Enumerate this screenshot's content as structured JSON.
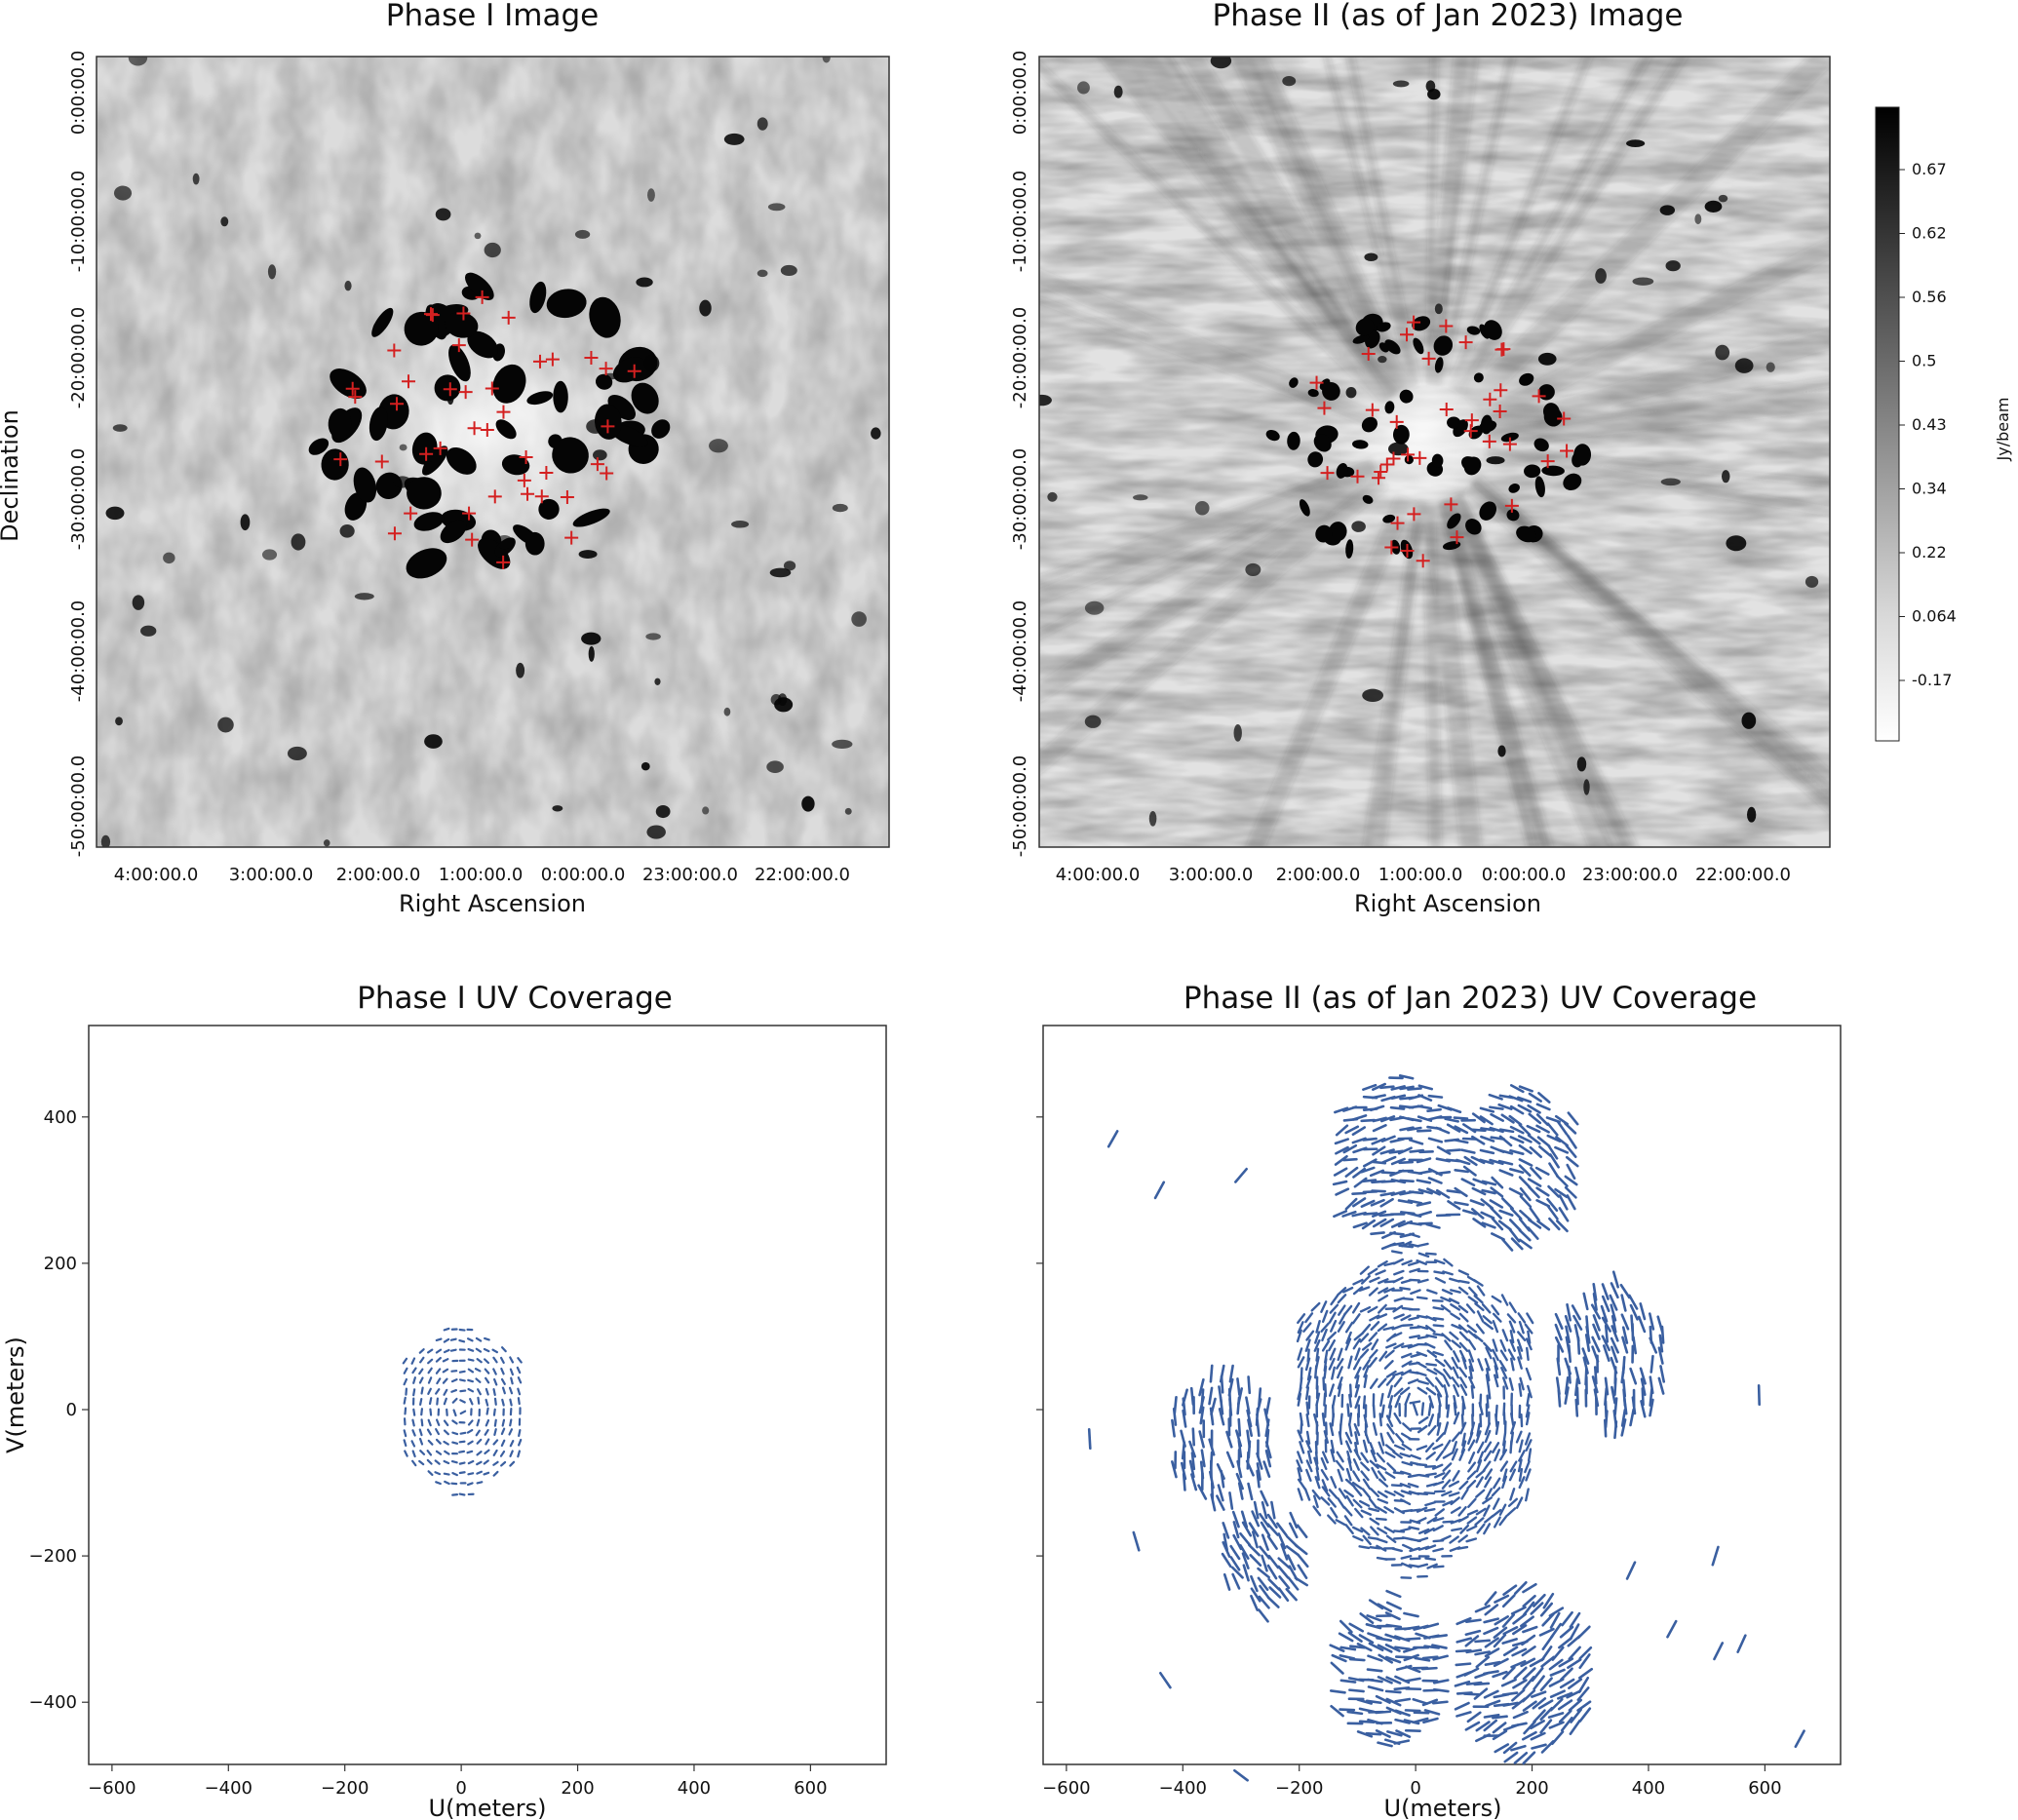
{
  "colors": {
    "uv": "#3a5fa0",
    "source": "#d42020",
    "frame": "#333333"
  },
  "chart_data": [
    {
      "type": "heatmap",
      "title": "Phase I Image",
      "xlabel": "Right Ascension",
      "ylabel": "Declination",
      "xticks": [
        "4:00:00.0",
        "3:00:00.0",
        "2:00:00.0",
        "1:00:00.0",
        "0:00:00.0",
        "23:00:00.0",
        "22:00:00.0"
      ],
      "yticks": [
        "0:00:00.0",
        "-10:00:00.0",
        "-20:00:00.0",
        "-30:00:00.0",
        "-40:00:00.0",
        "-50:00:00.0"
      ]
    },
    {
      "type": "heatmap",
      "title": "Phase II (as of Jan 2023) Image",
      "xlabel": "Right Ascension",
      "xticks": [
        "4:00:00.0",
        "3:00:00.0",
        "2:00:00.0",
        "1:00:00.0",
        "0:00:00.0",
        "23:00:00.0",
        "22:00:00.0"
      ],
      "yticks": [
        "0:00:00.0",
        "-10:00:00.0",
        "-20:00:00.0",
        "-30:00:00.0",
        "-40:00:00.0",
        "-50:00:00.0"
      ],
      "colorbar": {
        "label": "Jy/beam",
        "ticks": [
          "0.67",
          "0.62",
          "0.56",
          "0.5",
          "0.43",
          "0.34",
          "0.22",
          "0.064",
          "-0.17"
        ]
      }
    },
    {
      "type": "scatter",
      "title": "Phase I UV Coverage",
      "xlabel": "U(meters)",
      "ylabel": "V(meters)",
      "xlim": [
        -640,
        730
      ],
      "ylim": [
        -485,
        525
      ],
      "xticks": [
        -600,
        -400,
        -200,
        0,
        200,
        400,
        600
      ],
      "yticks": [
        -400,
        -200,
        0,
        200,
        400
      ],
      "coverage": "compact hexagon, about -110 to 110 m in U and -115 to 115 m in V"
    },
    {
      "type": "scatter",
      "title": "Phase II (as of Jan 2023) UV Coverage",
      "xlabel": "U(meters)",
      "xlim": [
        -640,
        730
      ],
      "ylim": [
        -485,
        525
      ],
      "xticks": [
        -600,
        -400,
        -200,
        0,
        200,
        400,
        600
      ],
      "coverage": "central hexagon within about 250 m plus outer hexagon clusters out to about 650 m"
    }
  ]
}
